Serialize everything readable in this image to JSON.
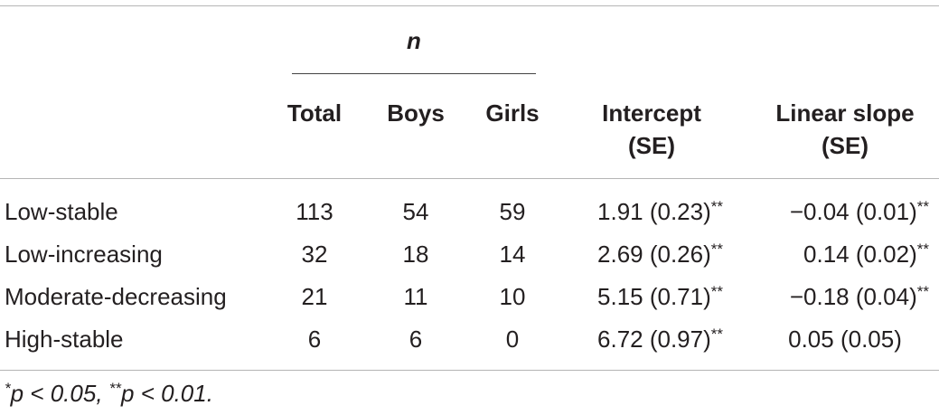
{
  "table": {
    "group_header": "n",
    "columns": [
      {
        "line1": "Total",
        "line2": ""
      },
      {
        "line1": "Boys",
        "line2": ""
      },
      {
        "line1": "Girls",
        "line2": ""
      },
      {
        "line1": "Intercept",
        "line2": "(SE)"
      },
      {
        "line1": "Linear slope",
        "line2": "(SE)"
      }
    ],
    "rows": [
      {
        "label": "Low-stable",
        "total": "113",
        "boys": "54",
        "girls": "59",
        "intercept": "1.91 (0.23)",
        "intercept_sig": "**",
        "slope": "−0.04 (0.01)",
        "slope_sig": "**"
      },
      {
        "label": "Low-increasing",
        "total": "32",
        "boys": "18",
        "girls": "14",
        "intercept": "2.69 (0.26)",
        "intercept_sig": "**",
        "slope": "0.14 (0.02)",
        "slope_sig": "**"
      },
      {
        "label": "Moderate-decreasing",
        "total": "21",
        "boys": "11",
        "girls": "10",
        "intercept": "5.15 (0.71)",
        "intercept_sig": "**",
        "slope": "−0.18 (0.04)",
        "slope_sig": "**"
      },
      {
        "label": "High-stable",
        "total": "6",
        "boys": "6",
        "girls": "0",
        "intercept": "6.72 (0.97)",
        "intercept_sig": "**",
        "slope": "0.05 (0.05)",
        "slope_sig": ""
      }
    ],
    "footnote": {
      "mark1": "*",
      "text1": "p < 0.05, ",
      "mark2": "**",
      "text2": "p < 0.01."
    }
  }
}
